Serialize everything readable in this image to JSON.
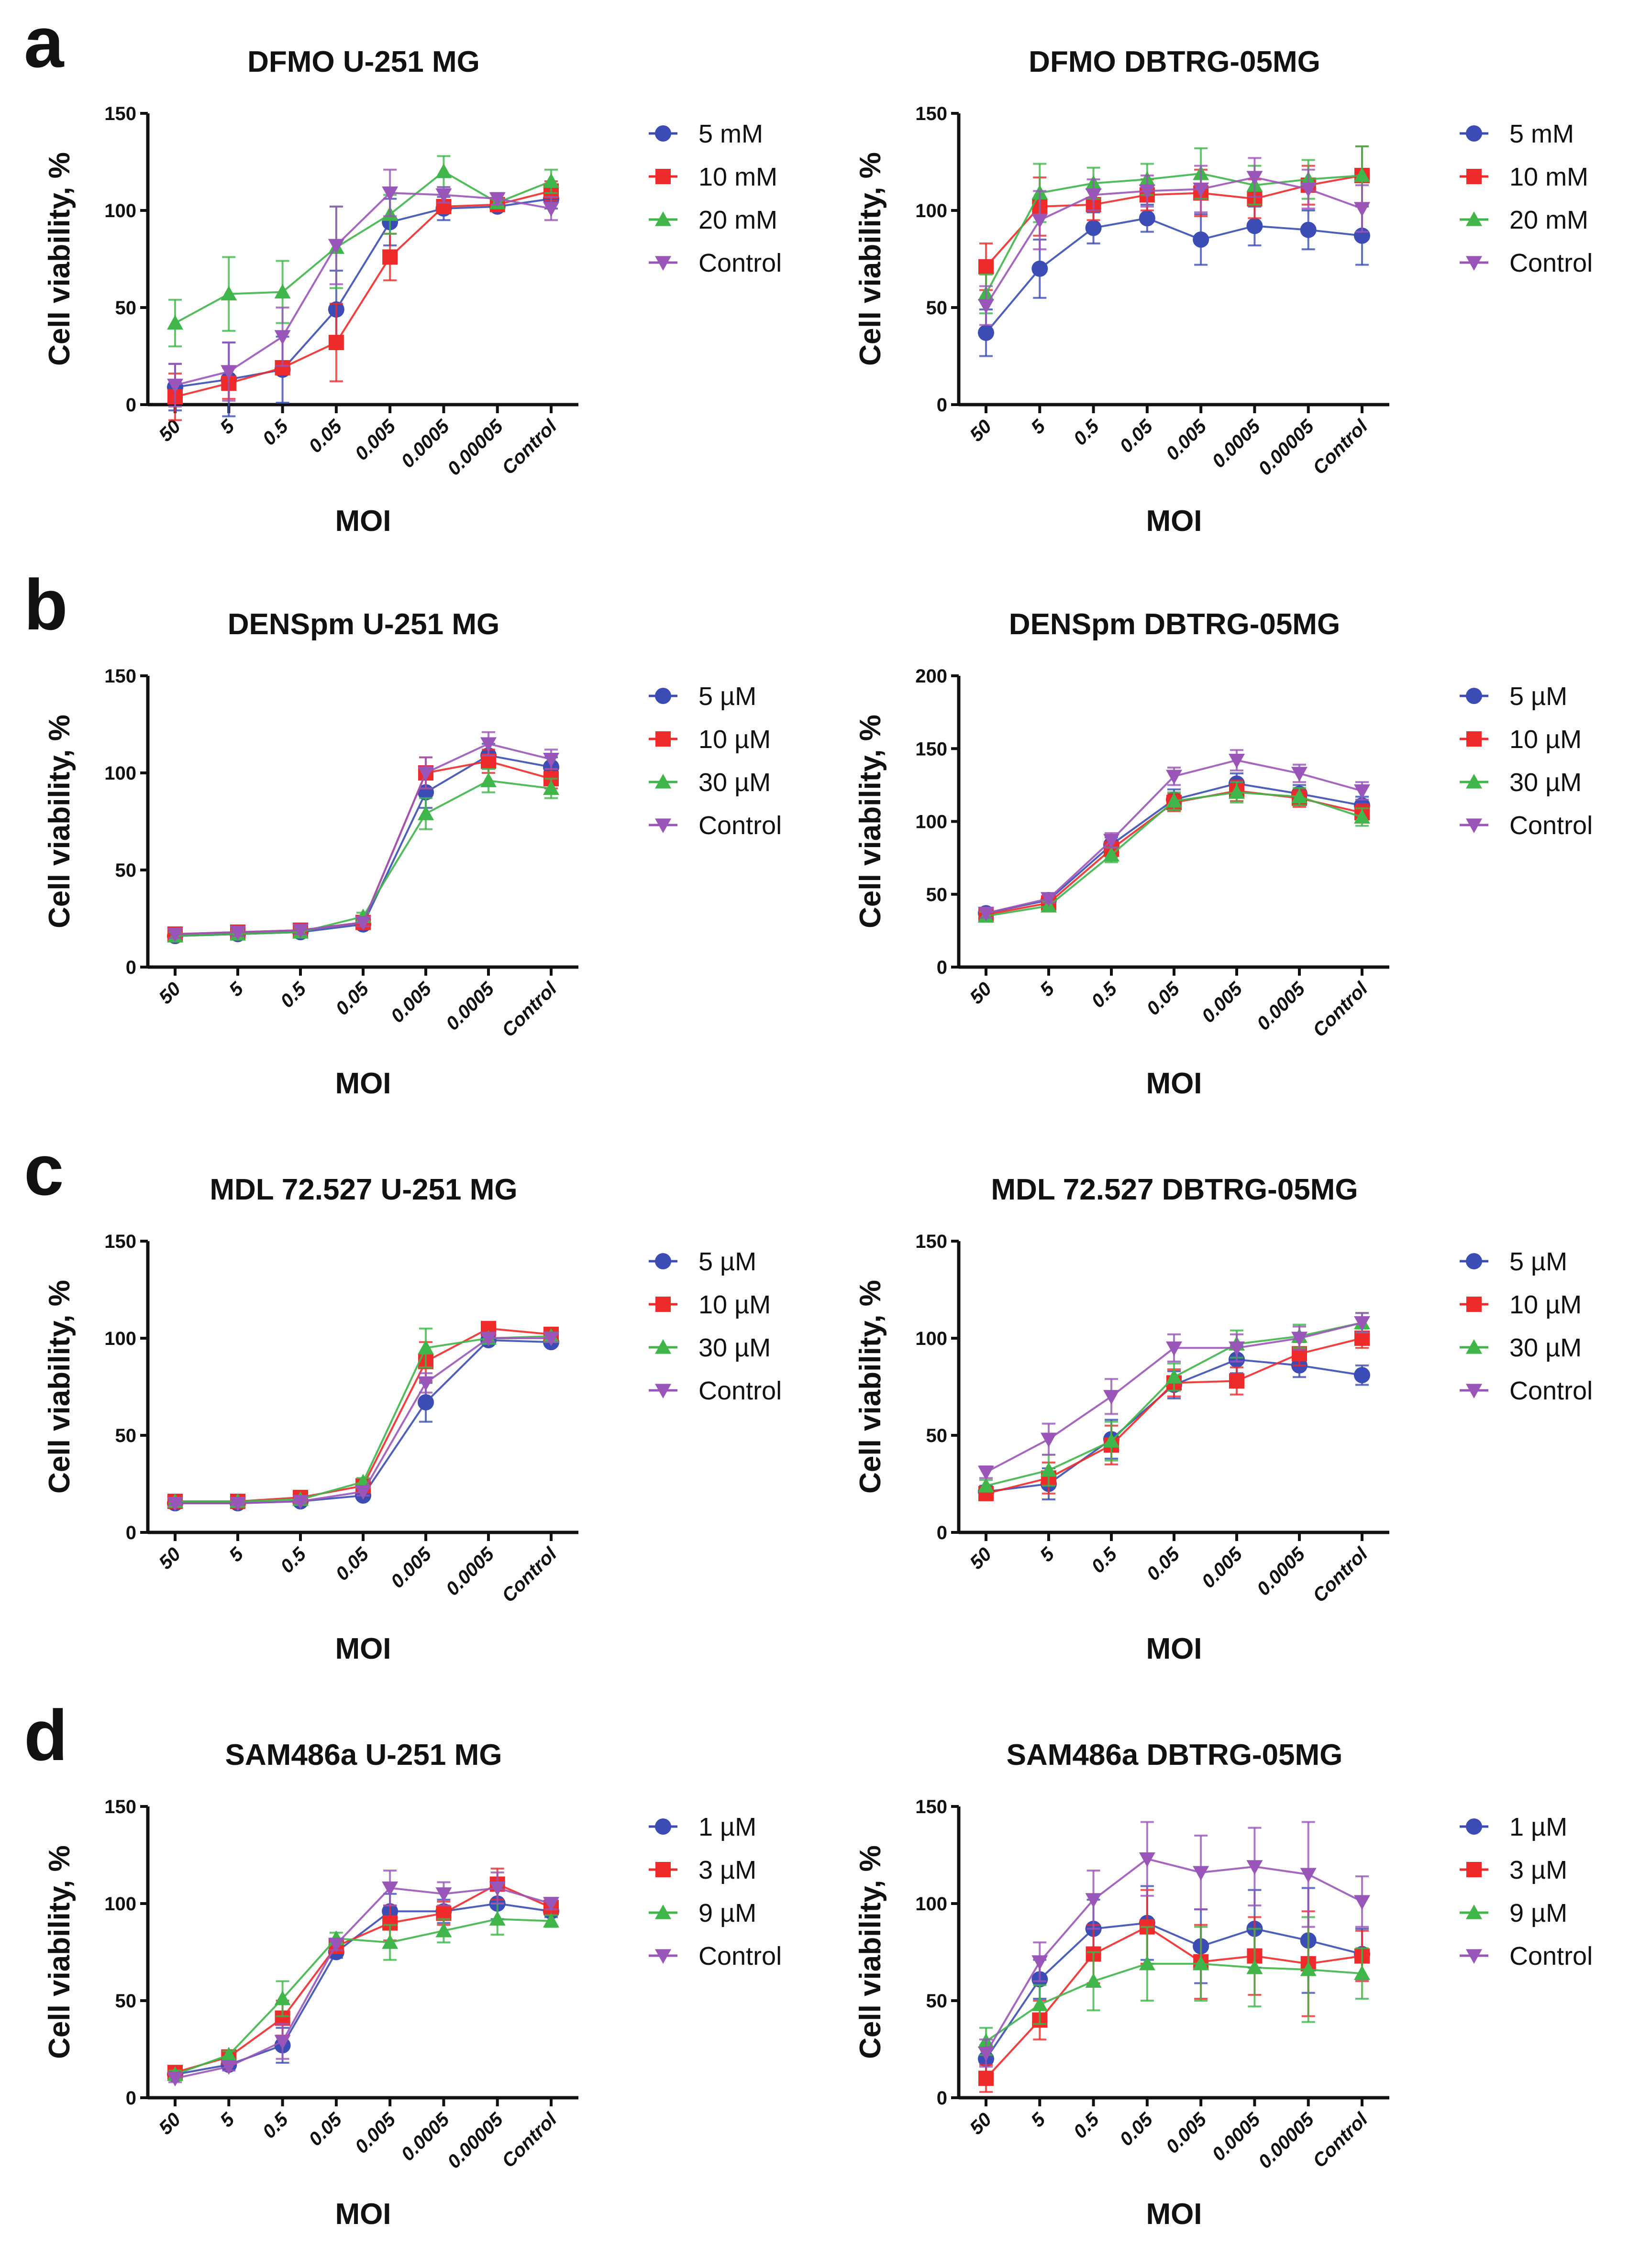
{
  "colors": {
    "s1": "#3b4cb4",
    "s2": "#ee2a2a",
    "s3": "#3fb54a",
    "s4": "#9a55b8"
  },
  "markers": [
    "circle",
    "square",
    "triangle-up",
    "triangle-down"
  ],
  "chart_data": [
    {
      "panel": "a",
      "type": "line",
      "title": "DFMO U-251 MG",
      "xlabel": "MOI",
      "ylabel": "Cell viability, %",
      "ylim": [
        0,
        150
      ],
      "yticks": [
        0,
        50,
        100,
        150
      ],
      "categories": [
        "50",
        "5",
        "0.5",
        "0.05",
        "0.005",
        "0.0005",
        "0.00005",
        "Control"
      ],
      "legend": "right",
      "series": [
        {
          "name": "5 mM",
          "values": [
            9,
            13,
            18,
            49,
            94,
            101,
            102,
            106
          ],
          "err": [
            12,
            19,
            17,
            20,
            12,
            6,
            2,
            5
          ]
        },
        {
          "name": "10 mM",
          "values": [
            4,
            11,
            19,
            32,
            76,
            102,
            103,
            110
          ],
          "err": [
            12,
            8,
            2,
            20,
            12,
            2,
            2,
            5
          ]
        },
        {
          "name": "20 mM",
          "values": [
            42,
            57,
            58,
            81,
            98,
            120,
            104,
            115
          ],
          "err": [
            12,
            19,
            16,
            21,
            10,
            8,
            2,
            6
          ]
        },
        {
          "name": "Control",
          "values": [
            10,
            17,
            35,
            82,
            109,
            108,
            106,
            101
          ],
          "err": [
            11,
            15,
            15,
            20,
            12,
            4,
            3,
            6
          ]
        }
      ]
    },
    {
      "panel": "",
      "type": "line",
      "title": "DFMO DBTRG-05MG",
      "xlabel": "MOI",
      "ylabel": "Cell viability, %",
      "ylim": [
        0,
        150
      ],
      "yticks": [
        0,
        50,
        100,
        150
      ],
      "categories": [
        "50",
        "5",
        "0.5",
        "0.05",
        "0.005",
        "0.0005",
        "0.00005",
        "Control"
      ],
      "legend": "right",
      "series": [
        {
          "name": "5 mM",
          "values": [
            37,
            70,
            91,
            96,
            85,
            92,
            90,
            87
          ],
          "err": [
            12,
            15,
            8,
            7,
            13,
            10,
            10,
            15
          ]
        },
        {
          "name": "10 mM",
          "values": [
            71,
            102,
            103,
            108,
            109,
            106,
            113,
            118
          ],
          "err": [
            12,
            15,
            8,
            8,
            12,
            10,
            10,
            15
          ]
        },
        {
          "name": "20 mM",
          "values": [
            57,
            109,
            114,
            116,
            119,
            113,
            116,
            118
          ],
          "err": [
            10,
            15,
            8,
            8,
            13,
            10,
            10,
            15
          ]
        },
        {
          "name": "Control",
          "values": [
            51,
            95,
            108,
            110,
            111,
            117,
            111,
            101
          ],
          "err": [
            10,
            15,
            8,
            8,
            12,
            10,
            10,
            12
          ]
        }
      ]
    },
    {
      "panel": "b",
      "type": "line",
      "title": "DENSpm U-251 MG",
      "xlabel": "MOI",
      "ylabel": "Cell viability, %",
      "ylim": [
        0,
        150
      ],
      "yticks": [
        0,
        50,
        100,
        150
      ],
      "categories": [
        "50",
        "5",
        "0.5",
        "0.05",
        "0.005",
        "0.0005",
        "Control"
      ],
      "legend": "right",
      "series": [
        {
          "name": "5 µM",
          "values": [
            16,
            17,
            18,
            22,
            90,
            109,
            103
          ],
          "err": [
            2,
            2,
            2,
            2,
            8,
            6,
            5
          ]
        },
        {
          "name": "10 µM",
          "values": [
            17,
            18,
            19,
            23,
            100,
            106,
            97
          ],
          "err": [
            2,
            2,
            2,
            2,
            8,
            6,
            5
          ]
        },
        {
          "name": "30 µM",
          "values": [
            16,
            17,
            18,
            26,
            79,
            96,
            92
          ],
          "err": [
            2,
            2,
            2,
            2,
            8,
            6,
            5
          ]
        },
        {
          "name": "Control",
          "values": [
            17,
            18,
            19,
            23,
            100,
            115,
            107
          ],
          "err": [
            2,
            2,
            2,
            2,
            8,
            6,
            5
          ]
        }
      ]
    },
    {
      "panel": "",
      "type": "line",
      "title": "DENSpm DBTRG-05MG",
      "xlabel": "MOI",
      "ylabel": "Cell viability, %",
      "ylim": [
        0,
        200
      ],
      "yticks": [
        0,
        50,
        100,
        150,
        200
      ],
      "categories": [
        "50",
        "5",
        "0.5",
        "0.05",
        "0.005",
        "0.0005",
        "Control"
      ],
      "legend": "right",
      "series": [
        {
          "name": "5 µM",
          "values": [
            37,
            46,
            84,
            115,
            126,
            119,
            111
          ],
          "err": [
            3,
            3,
            5,
            7,
            7,
            6,
            6
          ]
        },
        {
          "name": "10 µM",
          "values": [
            36,
            44,
            81,
            113,
            121,
            116,
            106
          ],
          "err": [
            3,
            3,
            5,
            6,
            7,
            6,
            6
          ]
        },
        {
          "name": "30 µM",
          "values": [
            35,
            42,
            77,
            114,
            120,
            117,
            103
          ],
          "err": [
            3,
            3,
            5,
            6,
            7,
            6,
            6
          ]
        },
        {
          "name": "Control",
          "values": [
            37,
            47,
            87,
            131,
            142,
            133,
            121
          ],
          "err": [
            3,
            3,
            5,
            6,
            7,
            6,
            6
          ]
        }
      ]
    },
    {
      "panel": "c",
      "type": "line",
      "title": "MDL 72.527 U-251 MG",
      "xlabel": "MOI",
      "ylabel": "Cell viability, %",
      "ylim": [
        0,
        150
      ],
      "yticks": [
        0,
        50,
        100,
        150
      ],
      "categories": [
        "50",
        "5",
        "0.5",
        "0.05",
        "0.005",
        "0.0005",
        "Control"
      ],
      "legend": "right",
      "series": [
        {
          "name": "5 µM",
          "values": [
            15,
            15,
            16,
            19,
            67,
            99,
            98
          ],
          "err": [
            1,
            1,
            1,
            2,
            10,
            2,
            2
          ]
        },
        {
          "name": "10 µM",
          "values": [
            16,
            16,
            18,
            24,
            88,
            105,
            102
          ],
          "err": [
            1,
            1,
            1,
            2,
            10,
            2,
            2
          ]
        },
        {
          "name": "30 µM",
          "values": [
            16,
            16,
            17,
            26,
            95,
            100,
            101
          ],
          "err": [
            1,
            1,
            1,
            2,
            10,
            2,
            2
          ]
        },
        {
          "name": "Control",
          "values": [
            15,
            15,
            16,
            21,
            77,
            100,
            100
          ],
          "err": [
            1,
            1,
            1,
            2,
            5,
            2,
            2
          ]
        }
      ]
    },
    {
      "panel": "",
      "type": "line",
      "title": "MDL 72.527 DBTRG-05MG",
      "xlabel": "MOI",
      "ylabel": "Cell viability, %",
      "ylim": [
        0,
        150
      ],
      "yticks": [
        0,
        50,
        100,
        150
      ],
      "categories": [
        "50",
        "5",
        "0.5",
        "0.05",
        "0.005",
        "0.0005",
        "Control"
      ],
      "legend": "right",
      "series": [
        {
          "name": "5 µM",
          "values": [
            21,
            25,
            48,
            76,
            89,
            86,
            81
          ],
          "err": [
            3,
            8,
            10,
            7,
            7,
            6,
            5
          ]
        },
        {
          "name": "10 µM",
          "values": [
            20,
            28,
            45,
            77,
            78,
            92,
            100
          ],
          "err": [
            3,
            8,
            10,
            7,
            7,
            6,
            5
          ]
        },
        {
          "name": "30 µM",
          "values": [
            24,
            32,
            47,
            80,
            97,
            101,
            108
          ],
          "err": [
            3,
            8,
            10,
            7,
            7,
            6,
            5
          ]
        },
        {
          "name": "Control",
          "values": [
            31,
            48,
            70,
            95,
            95,
            100,
            108
          ],
          "err": [
            3,
            8,
            9,
            7,
            7,
            6,
            5
          ]
        }
      ]
    },
    {
      "panel": "d",
      "type": "line",
      "title": "SAM486a U-251 MG",
      "xlabel": "MOI",
      "ylabel": "Cell viability, %",
      "ylim": [
        0,
        150
      ],
      "yticks": [
        0,
        50,
        100,
        150
      ],
      "categories": [
        "50",
        "5",
        "0.5",
        "0.05",
        "0.005",
        "0.0005",
        "0.00005",
        "Control"
      ],
      "legend": "right",
      "series": [
        {
          "name": "1 µM",
          "values": [
            12,
            17,
            27,
            75,
            96,
            96,
            100,
            96
          ],
          "err": [
            2,
            2,
            9,
            3,
            9,
            6,
            8,
            3
          ]
        },
        {
          "name": "3 µM",
          "values": [
            13,
            21,
            41,
            78,
            90,
            95,
            110,
            98
          ],
          "err": [
            2,
            2,
            9,
            3,
            9,
            6,
            8,
            3
          ]
        },
        {
          "name": "9 µM",
          "values": [
            12,
            22,
            51,
            82,
            80,
            86,
            92,
            91
          ],
          "err": [
            2,
            2,
            9,
            3,
            9,
            6,
            8,
            3
          ]
        },
        {
          "name": "Control",
          "values": [
            10,
            16,
            29,
            79,
            108,
            105,
            108,
            100
          ],
          "err": [
            2,
            2,
            9,
            3,
            9,
            6,
            8,
            3
          ]
        }
      ]
    },
    {
      "panel": "",
      "type": "line",
      "title": "SAM486a DBTRG-05MG",
      "xlabel": "MOI",
      "ylabel": "Cell viability, %",
      "ylim": [
        0,
        150
      ],
      "yticks": [
        0,
        50,
        100,
        150
      ],
      "categories": [
        "50",
        "5",
        "0.5",
        "0.05",
        "0.005",
        "0.0005",
        "0.00005",
        "Control"
      ],
      "legend": "right",
      "series": [
        {
          "name": "1 µM",
          "values": [
            20,
            61,
            87,
            90,
            78,
            87,
            81,
            74
          ],
          "err": [
            7,
            10,
            15,
            19,
            19,
            20,
            27,
            13
          ]
        },
        {
          "name": "3 µM",
          "values": [
            10,
            40,
            74,
            88,
            70,
            73,
            69,
            73
          ],
          "err": [
            7,
            10,
            15,
            19,
            19,
            20,
            27,
            13
          ]
        },
        {
          "name": "9 µM",
          "values": [
            29,
            48,
            60,
            69,
            69,
            67,
            66,
            64
          ],
          "err": [
            7,
            10,
            15,
            19,
            19,
            20,
            27,
            13
          ]
        },
        {
          "name": "Control",
          "values": [
            23,
            70,
            102,
            123,
            116,
            119,
            115,
            101
          ],
          "err": [
            7,
            10,
            15,
            19,
            19,
            20,
            27,
            13
          ]
        }
      ]
    }
  ]
}
